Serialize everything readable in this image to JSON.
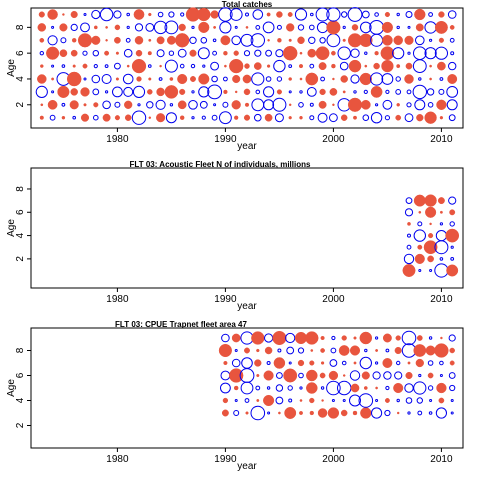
{
  "colors": {
    "negative_residual": "#e8553e",
    "positive_residual": "#0000ee",
    "frame": "#000000",
    "background": "#ffffff"
  },
  "chart_data": [
    {
      "type": "scatter",
      "subtype": "bubble-residuals",
      "title": "Total catches",
      "xlabel": "year",
      "ylabel": "Age",
      "xlim": [
        1972,
        2012
      ],
      "ylim": [
        0.2,
        9.5
      ],
      "xticks": [
        1980,
        1990,
        2000,
        2010
      ],
      "yticks": [
        2,
        4,
        6,
        8
      ],
      "ages": [
        1,
        2,
        3,
        4,
        5,
        6,
        7,
        8,
        9
      ],
      "years": [
        1973,
        1974,
        1975,
        1976,
        1977,
        1978,
        1979,
        1980,
        1981,
        1982,
        1983,
        1984,
        1985,
        1986,
        1987,
        1988,
        1989,
        1990,
        1991,
        1992,
        1993,
        1994,
        1995,
        1996,
        1997,
        1998,
        1999,
        2000,
        2001,
        2002,
        2003,
        2004,
        2005,
        2006,
        2007,
        2008,
        2009,
        2010,
        2011
      ],
      "residual_pattern_seed": 11,
      "legend": "none",
      "grid": false
    },
    {
      "type": "scatter",
      "subtype": "bubble-residuals",
      "title": "FLT 03: Acoustic Fleet  N of individuals, millions",
      "xlabel": "year",
      "ylabel": "Age",
      "xlim": [
        1972,
        2012
      ],
      "ylim": [
        -0.5,
        9.8
      ],
      "xticks": [
        1980,
        1990,
        2000,
        2010
      ],
      "yticks": [
        2,
        4,
        6,
        8
      ],
      "ages": [
        1,
        2,
        3,
        4,
        5,
        6,
        7
      ],
      "years": [
        2007,
        2008,
        2009,
        2010,
        2011
      ],
      "residual_pattern_seed": 29,
      "legend": "none",
      "grid": false
    },
    {
      "type": "scatter",
      "subtype": "bubble-residuals",
      "title": "FLT 03: CPUE Trapnet fleet area 47",
      "xlabel": "year",
      "ylabel": "Age",
      "xlim": [
        1972,
        2012
      ],
      "ylim": [
        0.2,
        9.8
      ],
      "xticks": [
        1980,
        1990,
        2000,
        2010
      ],
      "yticks": [
        2,
        4,
        6,
        8
      ],
      "ages": [
        3,
        4,
        5,
        6,
        7,
        8,
        9
      ],
      "years": [
        1990,
        1991,
        1992,
        1993,
        1994,
        1995,
        1996,
        1997,
        1998,
        1999,
        2000,
        2001,
        2002,
        2003,
        2004,
        2005,
        2006,
        2007,
        2008,
        2009,
        2010,
        2011
      ],
      "residual_pattern_seed": 47,
      "legend": "none",
      "grid": false
    }
  ]
}
